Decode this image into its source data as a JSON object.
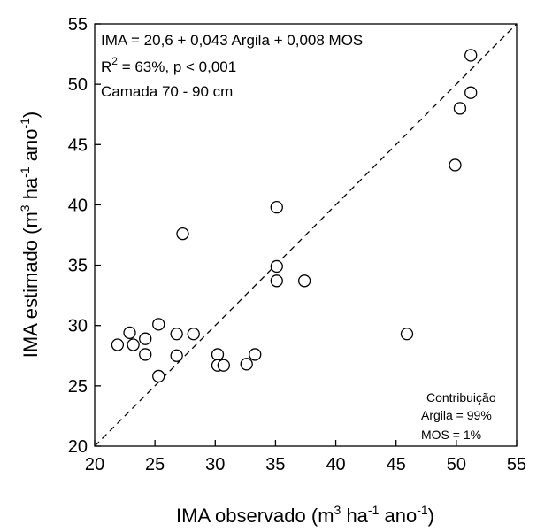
{
  "chart_data": {
    "type": "scatter",
    "xlim": [
      20,
      55
    ],
    "ylim": [
      20,
      55
    ],
    "x_ticks": [
      "20",
      "25",
      "30",
      "35",
      "40",
      "45",
      "50",
      "55"
    ],
    "y_ticks": [
      "20",
      "25",
      "30",
      "35",
      "40",
      "45",
      "50",
      "55"
    ],
    "xlabel": {
      "main": "IMA observado (m",
      "sup1": "3",
      "mid1": " ha",
      "sup2": "-1",
      "mid2": " ano",
      "sup3": "-1",
      "end": ")"
    },
    "ylabel": {
      "main": "IMA estimado (m",
      "sup1": "3",
      "mid1": " ha",
      "sup2": "-1",
      "mid2": " ano",
      "sup3": "-1",
      "end": ")"
    },
    "reference_line": "1:1 (dashed)",
    "annotations": {
      "equation": "IMA = 20,6 + 0,043 Argila + 0,008 MOS",
      "r2_prefix": "R",
      "r2_sup": "2",
      "r2_rest": " = 63%, p < 0,001",
      "layer": "Camada 70 - 90 cm"
    },
    "contribution": {
      "title": "Contribuição",
      "argila": "Argila = 99%",
      "mos": "MOS = 1%"
    },
    "points": [
      {
        "x": 21.9,
        "y": 28.4
      },
      {
        "x": 22.9,
        "y": 29.4
      },
      {
        "x": 23.2,
        "y": 28.4
      },
      {
        "x": 24.2,
        "y": 28.9
      },
      {
        "x": 24.2,
        "y": 27.6
      },
      {
        "x": 25.3,
        "y": 30.1
      },
      {
        "x": 25.3,
        "y": 25.8
      },
      {
        "x": 26.8,
        "y": 29.3
      },
      {
        "x": 26.8,
        "y": 27.5
      },
      {
        "x": 27.3,
        "y": 37.6
      },
      {
        "x": 28.2,
        "y": 29.3
      },
      {
        "x": 30.2,
        "y": 27.6
      },
      {
        "x": 30.2,
        "y": 26.7
      },
      {
        "x": 30.7,
        "y": 26.7
      },
      {
        "x": 32.6,
        "y": 26.8
      },
      {
        "x": 33.3,
        "y": 27.6
      },
      {
        "x": 35.1,
        "y": 39.8
      },
      {
        "x": 35.1,
        "y": 34.9
      },
      {
        "x": 35.1,
        "y": 33.7
      },
      {
        "x": 37.4,
        "y": 33.7
      },
      {
        "x": 45.9,
        "y": 29.3
      },
      {
        "x": 49.9,
        "y": 43.3
      },
      {
        "x": 50.3,
        "y": 48.0
      },
      {
        "x": 51.2,
        "y": 52.4
      },
      {
        "x": 51.2,
        "y": 49.3
      }
    ]
  }
}
